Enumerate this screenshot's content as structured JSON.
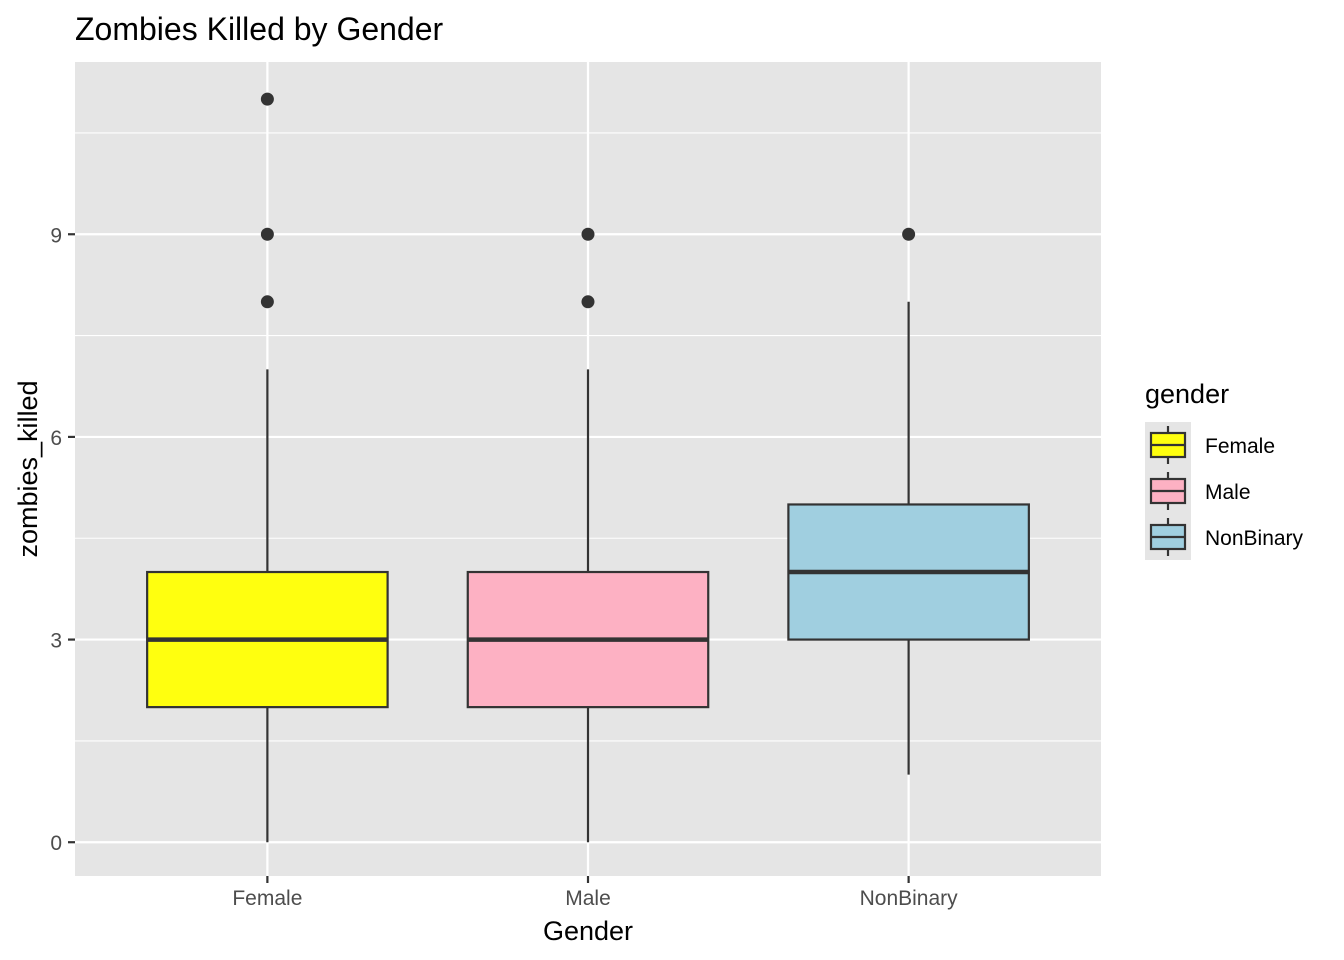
{
  "chart_data": {
    "type": "boxplot",
    "title": "Zombies Killed by Gender",
    "xlabel": "Gender",
    "ylabel": "zombies_killed",
    "categories": [
      "Female",
      "Male",
      "NonBinary"
    ],
    "ylim": [
      -0.5,
      11.55
    ],
    "yticks": [
      0,
      3,
      6,
      9
    ],
    "grid": true,
    "legend": {
      "title": "gender",
      "position": "right",
      "entries": [
        "Female",
        "Male",
        "NonBinary"
      ]
    },
    "boxes": [
      {
        "category": "Female",
        "fill": "#FFFF0F",
        "whisker_low": 0,
        "q1": 2,
        "median": 3,
        "q3": 4,
        "whisker_high": 7,
        "outliers": [
          8,
          9,
          11
        ]
      },
      {
        "category": "Male",
        "fill": "#FDB1C3",
        "whisker_low": 0,
        "q1": 2,
        "median": 3,
        "q3": 4,
        "whisker_high": 7,
        "outliers": [
          8,
          9
        ]
      },
      {
        "category": "NonBinary",
        "fill": "#A0CFE0",
        "whisker_low": 1,
        "q1": 3,
        "median": 4,
        "q3": 5,
        "whisker_high": 8,
        "outliers": [
          9
        ]
      }
    ],
    "colors": {
      "panel_background": "#E5E5E5",
      "grid": "#FFFFFF",
      "box_outline": "#333333",
      "axis_text": "#4D4D4D"
    }
  }
}
